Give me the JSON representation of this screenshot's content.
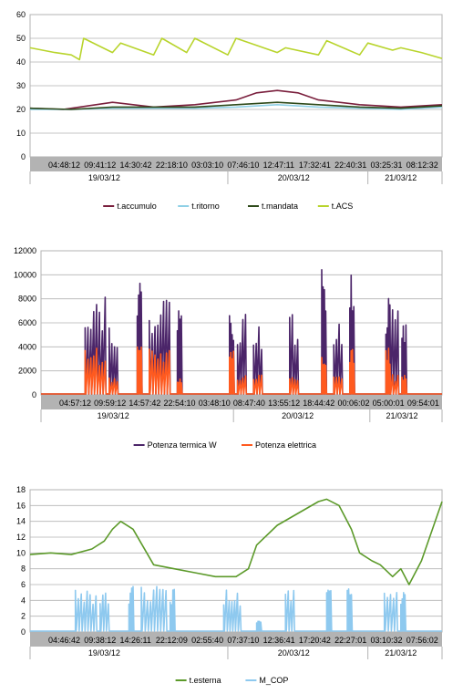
{
  "chart_data": [
    {
      "type": "line",
      "ylim": [
        0,
        60
      ],
      "yticks": [
        0,
        10,
        20,
        30,
        40,
        50,
        60
      ],
      "grid": true,
      "legend": "bottom",
      "time_labels": [
        "04:48:12",
        "09:41:12",
        "14:30:42",
        "22:18:10",
        "03:03:10",
        "07:46:10",
        "12:47:11",
        "17:32:41",
        "22:40:31",
        "03:25:31",
        "08:12:32"
      ],
      "date_labels": [
        "19/03/12",
        "20/03/12",
        "21/03/12"
      ],
      "series": [
        {
          "name": "t.accumulo",
          "color": "#7a1f3d",
          "x": [
            0,
            0.08,
            0.12,
            0.2,
            0.3,
            0.4,
            0.5,
            0.55,
            0.6,
            0.65,
            0.7,
            0.8,
            0.9,
            1
          ],
          "y": [
            20.5,
            20,
            21,
            23,
            21,
            22,
            24,
            27,
            28,
            27,
            24,
            22,
            21,
            22
          ]
        },
        {
          "name": "t.ritorno",
          "color": "#8fd0e6",
          "x": [
            0,
            0.1,
            0.2,
            0.3,
            0.4,
            0.5,
            0.6,
            0.7,
            0.8,
            0.9,
            1
          ],
          "y": [
            20,
            20,
            20.5,
            20.5,
            20.5,
            21,
            22,
            21,
            20.5,
            20,
            21
          ]
        },
        {
          "name": "t.mandata",
          "color": "#2e4a1a",
          "x": [
            0,
            0.1,
            0.2,
            0.3,
            0.4,
            0.5,
            0.6,
            0.7,
            0.8,
            0.9,
            1
          ],
          "y": [
            20.5,
            20,
            21,
            21,
            21,
            22,
            23,
            22,
            21,
            20.5,
            21.5
          ]
        },
        {
          "name": "t.ACS",
          "color": "#b8d42c",
          "x": [
            0,
            0.06,
            0.1,
            0.12,
            0.13,
            0.2,
            0.22,
            0.3,
            0.32,
            0.38,
            0.4,
            0.48,
            0.5,
            0.55,
            0.6,
            0.62,
            0.7,
            0.72,
            0.8,
            0.82,
            0.88,
            0.9,
            0.95,
            1
          ],
          "y": [
            46,
            44,
            43,
            41,
            50,
            44,
            48,
            43,
            50,
            44,
            50,
            43,
            50,
            47,
            44,
            46,
            43,
            49,
            43,
            48,
            45,
            46,
            44,
            41.5
          ]
        }
      ]
    },
    {
      "type": "line",
      "ylim": [
        0,
        12000
      ],
      "yticks": [
        0,
        2000,
        4000,
        6000,
        8000,
        10000,
        12000
      ],
      "grid": true,
      "legend": "bottom",
      "time_labels": [
        "04:57:12",
        "09:59:12",
        "14:57:42",
        "22:54:10",
        "03:48:10",
        "08:47:40",
        "13:55:12",
        "18:44:42",
        "00:06:02",
        "05:00:01",
        "09:54:01"
      ],
      "date_labels": [
        "19/03/12",
        "20/03/12",
        "21/03/12"
      ],
      "series": [
        {
          "name": "Potenza termica W",
          "color": "#4b2569",
          "bursts": [
            [
              0.11,
              0.16,
              8800
            ],
            [
              0.17,
              0.19,
              6500
            ],
            [
              0.24,
              0.25,
              9300
            ],
            [
              0.27,
              0.32,
              8500
            ],
            [
              0.34,
              0.35,
              8500
            ],
            [
              0.47,
              0.48,
              7000
            ],
            [
              0.49,
              0.51,
              6900
            ],
            [
              0.53,
              0.55,
              6200
            ],
            [
              0.62,
              0.64,
              6700
            ],
            [
              0.7,
              0.71,
              10500
            ],
            [
              0.73,
              0.75,
              6000
            ],
            [
              0.77,
              0.78,
              11000
            ],
            [
              0.86,
              0.87,
              8300
            ],
            [
              0.87,
              0.89,
              7700
            ],
            [
              0.9,
              0.91,
              6800
            ]
          ]
        },
        {
          "name": "Potenza elettrica",
          "color": "#ff5a1f",
          "bursts": [
            [
              0.11,
              0.16,
              4000
            ],
            [
              0.17,
              0.19,
              1500
            ],
            [
              0.24,
              0.25,
              4000
            ],
            [
              0.27,
              0.32,
              4000
            ],
            [
              0.34,
              0.35,
              1500
            ],
            [
              0.47,
              0.48,
              4000
            ],
            [
              0.49,
              0.51,
              1700
            ],
            [
              0.53,
              0.55,
              1800
            ],
            [
              0.62,
              0.64,
              1800
            ],
            [
              0.7,
              0.71,
              4000
            ],
            [
              0.73,
              0.75,
              1700
            ],
            [
              0.77,
              0.78,
              4000
            ],
            [
              0.86,
              0.87,
              4000
            ],
            [
              0.87,
              0.89,
              1700
            ],
            [
              0.9,
              0.91,
              1700
            ]
          ]
        }
      ]
    },
    {
      "type": "line",
      "ylim": [
        0,
        18
      ],
      "yticks": [
        0,
        2,
        4,
        6,
        8,
        10,
        12,
        14,
        16,
        18
      ],
      "grid": true,
      "legend": "bottom",
      "time_labels": [
        "04:46:42",
        "09:38:12",
        "14:26:11",
        "22:12:09",
        "02:55:40",
        "07:37:10",
        "12:36:41",
        "17:20:42",
        "22:27:01",
        "03:10:32",
        "07:56:02"
      ],
      "date_labels": [
        "19/03/12",
        "20/03/12",
        "21/03/12"
      ],
      "series": [
        {
          "name": "t.esterna",
          "color": "#5c9a2a",
          "x": [
            0,
            0.05,
            0.1,
            0.15,
            0.18,
            0.2,
            0.22,
            0.25,
            0.3,
            0.35,
            0.4,
            0.45,
            0.5,
            0.53,
            0.55,
            0.6,
            0.65,
            0.7,
            0.72,
            0.75,
            0.78,
            0.8,
            0.83,
            0.85,
            0.88,
            0.9,
            0.92,
            0.95,
            1
          ],
          "y": [
            9.8,
            10,
            9.8,
            10.5,
            11.5,
            13,
            14,
            13,
            8.5,
            8,
            7.5,
            7,
            7,
            8,
            11,
            13.5,
            15,
            16.5,
            16.8,
            16,
            13,
            10,
            9,
            8.5,
            7,
            8,
            6,
            9,
            16.5
          ]
        },
        {
          "name": "M_COP",
          "color": "#8ec9ef",
          "bursts": [
            [
              0.11,
              0.16,
              5.8
            ],
            [
              0.17,
              0.19,
              5
            ],
            [
              0.24,
              0.25,
              5.8
            ],
            [
              0.27,
              0.33,
              6
            ],
            [
              0.34,
              0.35,
              5.5
            ],
            [
              0.47,
              0.51,
              5.3
            ],
            [
              0.55,
              0.56,
              1.5
            ],
            [
              0.62,
              0.64,
              5.5
            ],
            [
              0.72,
              0.73,
              5.5
            ],
            [
              0.77,
              0.78,
              5.5
            ],
            [
              0.86,
              0.89,
              5.6
            ],
            [
              0.9,
              0.91,
              5.2
            ]
          ]
        }
      ]
    }
  ]
}
